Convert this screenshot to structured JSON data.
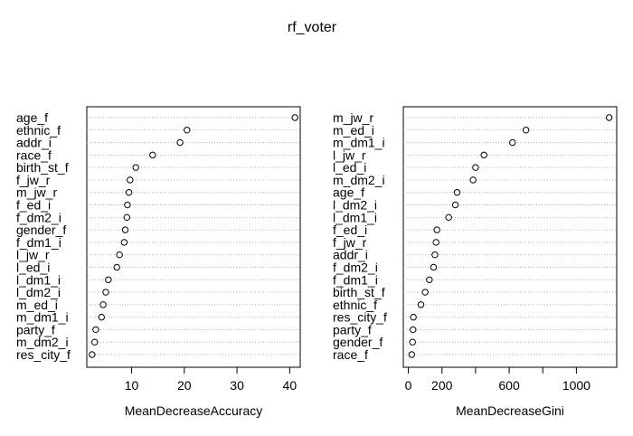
{
  "title": "rf_voter",
  "chart_data": [
    {
      "type": "scatter",
      "panel": "left",
      "xlabel": "MeanDecreaseAccuracy",
      "xlim": [
        1.5,
        42
      ],
      "xticks": [
        10,
        20,
        30,
        40
      ],
      "grid": "dotted-horizontal",
      "categories": [
        "age_f",
        "ethnic_f",
        "addr_i",
        "race_f",
        "birth_st_f",
        "f_jw_r",
        "m_jw_r",
        "f_ed_i",
        "f_dm2_i",
        "gender_f",
        "f_dm1_i",
        "l_jw_r",
        "l_ed_i",
        "l_dm1_i",
        "l_dm2_i",
        "m_ed_i",
        "m_dm1_i",
        "party_f",
        "m_dm2_i",
        "res_city_f"
      ],
      "values": [
        41,
        20.5,
        19.2,
        14,
        10.8,
        9.7,
        9.5,
        9.2,
        9.1,
        8.8,
        8.6,
        7.7,
        7.2,
        5.6,
        5.1,
        4.6,
        4.3,
        3.2,
        3.0,
        2.5
      ]
    },
    {
      "type": "scatter",
      "panel": "right",
      "xlabel": "MeanDecreaseGini",
      "xlim": [
        -30,
        1240
      ],
      "xticks": [
        0,
        200,
        600,
        1000
      ],
      "minor_ticks": [
        400,
        800
      ],
      "grid": "dotted-horizontal",
      "categories": [
        "m_jw_r",
        "m_ed_i",
        "m_dm1_i",
        "l_jw_r",
        "l_ed_i",
        "m_dm2_i",
        "age_f",
        "l_dm2_i",
        "l_dm1_i",
        "f_ed_i",
        "f_jw_r",
        "addr_i",
        "f_dm2_i",
        "f_dm1_i",
        "birth_st_f",
        "ethnic_f",
        "res_city_f",
        "party_f",
        "gender_f",
        "race_f"
      ],
      "values": [
        1195,
        700,
        620,
        450,
        400,
        385,
        290,
        280,
        240,
        170,
        165,
        158,
        150,
        125,
        100,
        75,
        30,
        28,
        25,
        20
      ]
    }
  ]
}
